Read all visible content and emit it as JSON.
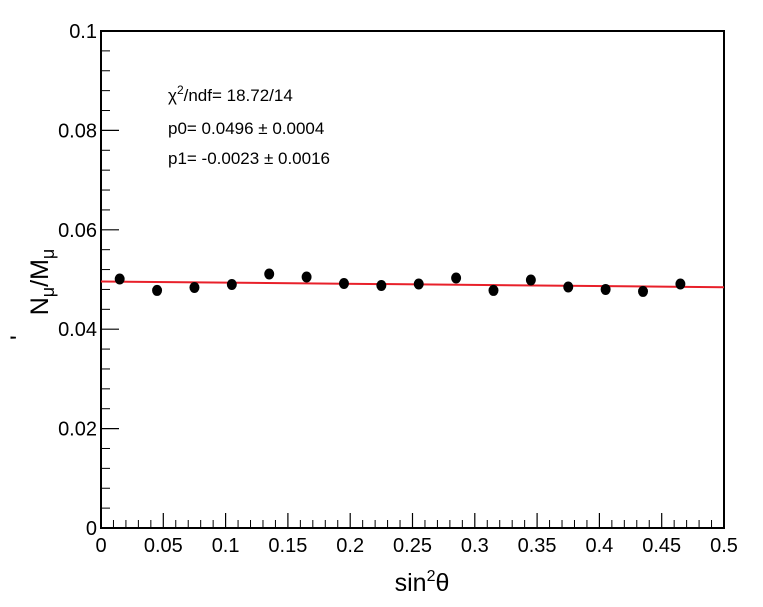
{
  "chart_data": {
    "type": "scatter",
    "xlabel": "sin",
    "xlabel_sup": "2",
    "xlabel_tail": "θ",
    "ylabel": "N",
    "ylabel_prime": "'",
    "ylabel_sub1": "μ",
    "ylabel_mid": "/M",
    "ylabel_sub2": "μ",
    "xlim": [
      0,
      0.5
    ],
    "ylim": [
      0,
      0.1
    ],
    "x_ticks": [
      0,
      0.05,
      0.1,
      0.15,
      0.2,
      0.25,
      0.3,
      0.35,
      0.4,
      0.45,
      0.5
    ],
    "x_tick_labels": [
      "0",
      "0.05",
      "0.1",
      "0.15",
      "0.2",
      "0.25",
      "0.3",
      "0.35",
      "0.4",
      "0.45",
      "0.5"
    ],
    "y_ticks": [
      0,
      0.02,
      0.04,
      0.06,
      0.08,
      0.1
    ],
    "y_tick_labels": [
      "0",
      "0.02",
      "0.04",
      "0.06",
      "0.08",
      "0.1"
    ],
    "grid": false,
    "series": [
      {
        "x": [
          0.015,
          0.045,
          0.075,
          0.105,
          0.135,
          0.165,
          0.195,
          0.225,
          0.255,
          0.285,
          0.315,
          0.345,
          0.375,
          0.405,
          0.435,
          0.465
        ],
        "y": [
          0.0501,
          0.0478,
          0.0484,
          0.049,
          0.0511,
          0.0505,
          0.0492,
          0.0488,
          0.0491,
          0.0503,
          0.0478,
          0.0499,
          0.0485,
          0.048,
          0.0476,
          0.0491
        ],
        "color": "#000000"
      }
    ],
    "fit": {
      "function": "p0 + p1*x",
      "p0": 0.0496,
      "p1": -0.0023,
      "x_range": [
        0,
        0.5
      ],
      "color": "#e8202a"
    },
    "stats_box": [
      {
        "pre": "χ",
        "sup": "2",
        "post": "/ndf= 18.72/14"
      },
      {
        "pre": "p0= 0.0496 ± 0.0004",
        "sup": "",
        "post": ""
      },
      {
        "pre": "p1= -0.0023 ± 0.0016",
        "sup": "",
        "post": ""
      }
    ]
  }
}
